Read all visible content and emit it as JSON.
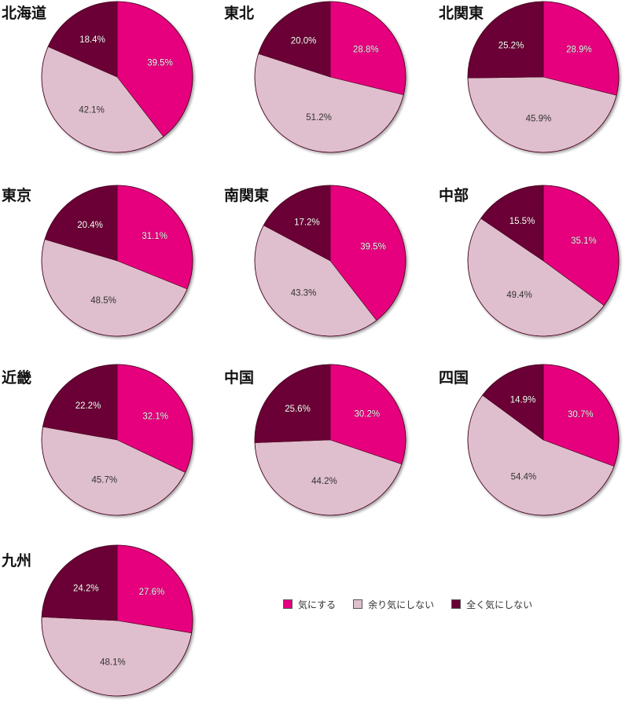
{
  "chart_data": {
    "type": "pie",
    "legend": {
      "placement": "bottom-right",
      "entries": [
        {
          "name": "気にする",
          "color": "#e6007e"
        },
        {
          "name": "余り気にしない",
          "color": "#dfbfcd"
        },
        {
          "name": "全く気にしない",
          "color": "#6a0034"
        }
      ]
    },
    "categories": [
      "気にする",
      "余り気にしない",
      "全く気にしない"
    ],
    "colors": [
      "#e6007e",
      "#dfbfcd",
      "#6a0034"
    ],
    "value_format": "percent",
    "regions": [
      {
        "name": "北海道",
        "values": [
          39.5,
          42.1,
          18.4
        ]
      },
      {
        "name": "東北",
        "values": [
          28.8,
          51.2,
          20.0
        ]
      },
      {
        "name": "北関東",
        "values": [
          28.9,
          45.9,
          25.2
        ]
      },
      {
        "name": "東京",
        "values": [
          31.1,
          48.5,
          20.4
        ]
      },
      {
        "name": "南関東",
        "values": [
          39.5,
          43.3,
          17.2
        ]
      },
      {
        "name": "中部",
        "values": [
          35.1,
          49.4,
          15.5
        ]
      },
      {
        "name": "近畿",
        "values": [
          32.1,
          45.7,
          22.2
        ]
      },
      {
        "name": "中国",
        "values": [
          30.2,
          44.2,
          25.6
        ]
      },
      {
        "name": "四国",
        "values": [
          30.7,
          54.4,
          14.9
        ]
      },
      {
        "name": "九州",
        "values": [
          27.6,
          48.1,
          24.2
        ]
      }
    ]
  }
}
